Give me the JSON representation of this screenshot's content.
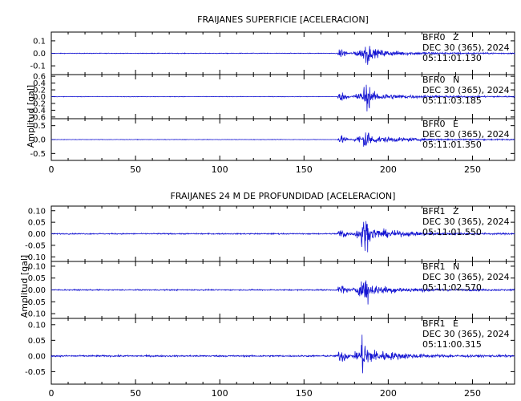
{
  "colors": {
    "trace": "#1414d2",
    "axis": "#000000",
    "background": "#ffffff"
  },
  "chart_data": [
    {
      "type": "line",
      "title": "FRAIJANES SUPERFICIE [ACELERACION]",
      "ylabel": "Amplitud [gal]",
      "xlim": [
        0,
        275
      ],
      "x_ticks": [
        "0",
        "50",
        "100",
        "150",
        "200",
        "250"
      ],
      "panels": [
        {
          "station": "BFR0",
          "component": "Z",
          "date": "DEC 30 (365), 2024",
          "time": "05:11:01.130",
          "ylim": [
            -0.17,
            0.17
          ],
          "y_ticks": [
            "-0.1",
            "0.0",
            "0.1"
          ],
          "y_tick_values": [
            -0.1,
            0.0,
            0.1
          ],
          "noise": 0.004,
          "event_onset": 170,
          "peak_time": 188,
          "peak_amplitude": 0.16
        },
        {
          "station": "BFR0",
          "component": "N",
          "date": "DEC 30 (365), 2024",
          "time": "05:11:03.185",
          "ylim": [
            -0.65,
            0.65
          ],
          "y_ticks": [
            "-0.6",
            "-0.4",
            "-0.2",
            "0.0",
            "0.2",
            "0.4",
            "0.6"
          ],
          "y_tick_values": [
            -0.6,
            -0.4,
            -0.2,
            0.0,
            0.2,
            0.4,
            0.6
          ],
          "noise": 0.012,
          "event_onset": 170,
          "peak_time": 188,
          "peak_amplitude": 0.6
        },
        {
          "station": "BFR0",
          "component": "E",
          "date": "DEC 30 (365), 2024",
          "time": "05:11:01.350",
          "ylim": [
            -0.75,
            0.75
          ],
          "y_ticks": [
            "-0.5",
            "0.0",
            "0.5"
          ],
          "y_tick_values": [
            -0.5,
            0.0,
            0.5
          ],
          "noise": 0.012,
          "event_onset": 170,
          "peak_time": 188,
          "peak_amplitude": 0.65
        }
      ]
    },
    {
      "type": "line",
      "title": "FRAIJANES 24 M DE PROFUNDIDAD [ACELERACION]",
      "ylabel": "Amplitud [gal]",
      "xlim": [
        0,
        275
      ],
      "x_ticks": [
        "0",
        "50",
        "100",
        "150",
        "200",
        "250"
      ],
      "panels": [
        {
          "station": "BFR1",
          "component": "Z",
          "date": "DEC 30 (365), 2024",
          "time": "05:11:01.550",
          "ylim": [
            -0.12,
            0.12
          ],
          "y_ticks": [
            "-0.10",
            "-0.05",
            "0.00",
            "0.05",
            "0.10"
          ],
          "y_tick_values": [
            -0.1,
            -0.05,
            0.0,
            0.05,
            0.1
          ],
          "noise": 0.004,
          "event_onset": 170,
          "peak_time": 187,
          "peak_amplitude": 0.115
        },
        {
          "station": "BFR1",
          "component": "N",
          "date": "DEC 30 (365), 2024",
          "time": "05:11:02.570",
          "ylim": [
            -0.12,
            0.12
          ],
          "y_ticks": [
            "-0.10",
            "-0.05",
            "0.00",
            "0.05",
            "0.10"
          ],
          "y_tick_values": [
            -0.1,
            -0.05,
            0.0,
            0.05,
            0.1
          ],
          "noise": 0.004,
          "event_onset": 170,
          "peak_time": 187,
          "peak_amplitude": 0.105
        },
        {
          "station": "BFR1",
          "component": "E",
          "date": "DEC 30 (365), 2024",
          "time": "05:11:00.315",
          "ylim": [
            -0.09,
            0.12
          ],
          "y_ticks": [
            "-0.05",
            "0.00",
            "0.05",
            "0.10"
          ],
          "y_tick_values": [
            -0.05,
            0.0,
            0.05,
            0.1
          ],
          "noise": 0.004,
          "event_onset": 170,
          "peak_time": 187,
          "peak_amplitude": 0.1
        }
      ]
    }
  ]
}
